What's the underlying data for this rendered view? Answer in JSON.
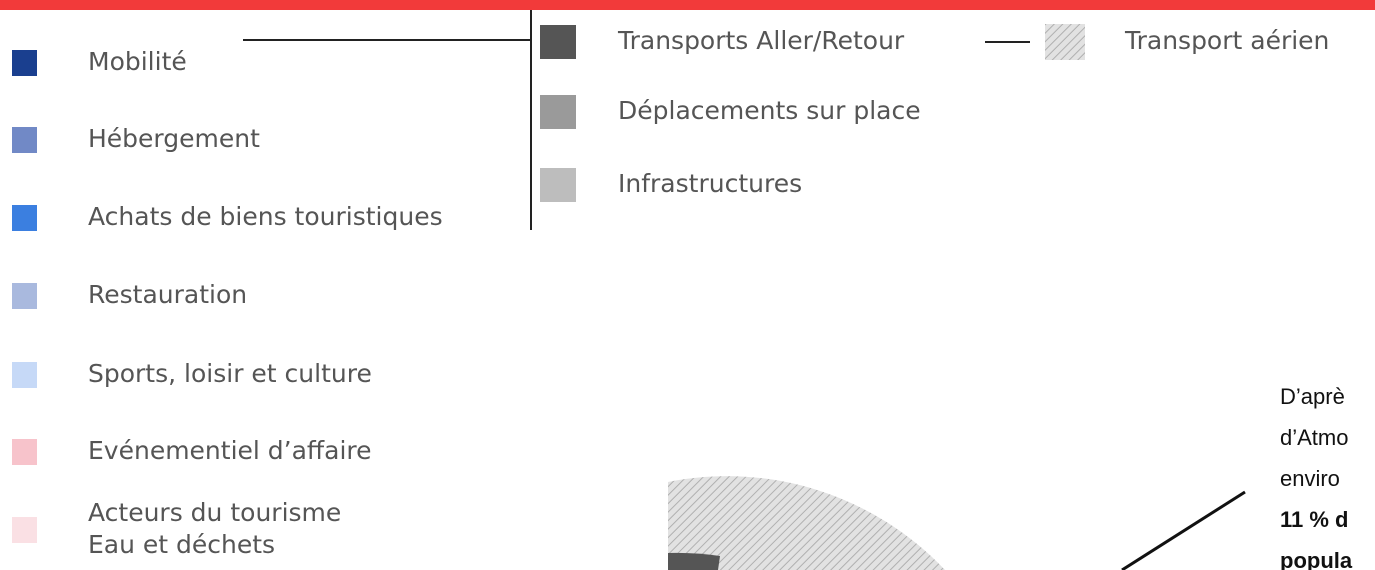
{
  "legend": [
    {
      "lines": [
        "Mobilité"
      ],
      "color": "#1a3f8f"
    },
    {
      "lines": [
        "Hébergement"
      ],
      "color": "#7189c6"
    },
    {
      "lines": [
        "Achats de biens touristiques"
      ],
      "color": "#3b7fe0"
    },
    {
      "lines": [
        "Restauration"
      ],
      "color": "#a9b9de"
    },
    {
      "lines": [
        "Sports, loisir et culture"
      ],
      "color": "#c6d9f7"
    },
    {
      "lines": [
        "Evénementiel d’affaire"
      ],
      "color": "#f7c3cb"
    },
    {
      "lines": [
        "Acteurs du tourisme",
        "Eau et déchets"
      ],
      "color": "#fae0e4"
    }
  ],
  "sublegend": [
    {
      "label": "Transports Aller/Retour",
      "color": "#555555"
    },
    {
      "label": "Déplacements sur place",
      "color": "#9a9a9a"
    },
    {
      "label": "Infrastructures",
      "color": "#bdbdbd"
    }
  ],
  "subsublegend": {
    "label": "Transport aérien"
  },
  "annotation": {
    "lines": [
      {
        "text": "D’aprè",
        "bold": false
      },
      {
        "text": "d’Atmo",
        "bold": false
      },
      {
        "text": "enviro",
        "bold": false
      },
      {
        "text": "11 % d",
        "bold": true
      },
      {
        "text": "popula",
        "bold": true
      }
    ]
  }
}
